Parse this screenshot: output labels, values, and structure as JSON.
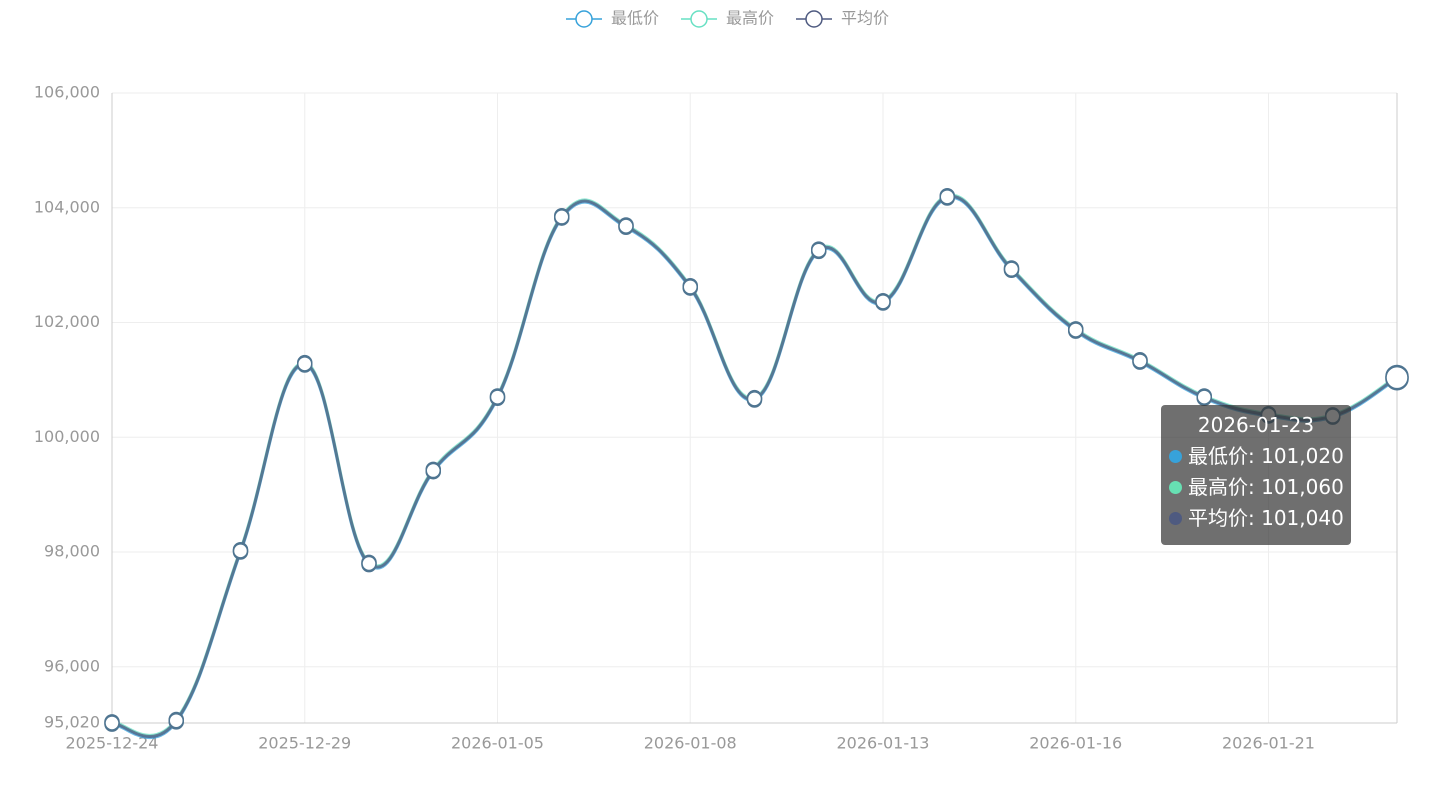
{
  "chart_data": {
    "type": "line",
    "categories": [
      "2025-12-24",
      null,
      null,
      "2025-12-29",
      null,
      null,
      "2026-01-05",
      null,
      null,
      "2026-01-08",
      null,
      null,
      "2026-01-13",
      null,
      null,
      "2026-01-16",
      null,
      null,
      "2026-01-21",
      null,
      null
    ],
    "series": [
      {
        "name": "最低价",
        "color": "#37a2da",
        "values": [
          95000,
          95040,
          98000,
          101260,
          97780,
          99400,
          100680,
          103820,
          103660,
          102600,
          100650,
          103240,
          102340,
          104170,
          102910,
          101850,
          101310,
          100680,
          100370,
          100350,
          101020
        ]
      },
      {
        "name": "最高价",
        "color": "#67e0c3",
        "values": [
          95040,
          95080,
          98040,
          101300,
          97820,
          99440,
          100720,
          103860,
          103700,
          102640,
          100690,
          103280,
          102380,
          104210,
          102950,
          101890,
          101350,
          100720,
          100410,
          100390,
          101060
        ]
      },
      {
        "name": "平均价",
        "color": "#4e5a80",
        "values": [
          95020,
          95060,
          98020,
          101280,
          97800,
          99420,
          100700,
          103840,
          103680,
          102620,
          100670,
          103260,
          102360,
          104190,
          102930,
          101870,
          101330,
          100700,
          100390,
          100370,
          101040
        ]
      }
    ],
    "ylim": [
      95020,
      106000
    ],
    "yticks": [
      {
        "value": 95020,
        "label": "95,020"
      },
      {
        "value": 96000,
        "label": "96,000"
      },
      {
        "value": 98000,
        "label": "98,000"
      },
      {
        "value": 100000,
        "label": "100,000"
      },
      {
        "value": 102000,
        "label": "102,000"
      },
      {
        "value": 104000,
        "label": "104,000"
      },
      {
        "value": 106000,
        "label": "106,000"
      }
    ],
    "grid": true,
    "legend": "top",
    "tooltip": {
      "title": "2026-01-23",
      "values": [
        101020,
        101060,
        101040
      ],
      "value_labels": [
        "101,020",
        "101,060",
        "101,040"
      ]
    }
  }
}
